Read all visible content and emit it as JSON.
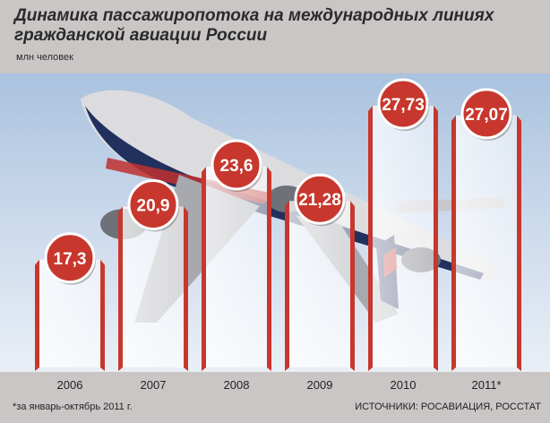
{
  "chart_data": {
    "type": "bar",
    "title": "Динамика пассажиропотока на международных линиях гражданской авиации России",
    "unit_label": "млн человек",
    "categories": [
      "2006",
      "2007",
      "2008",
      "2009",
      "2010",
      "2011*"
    ],
    "values": [
      17.3,
      20.9,
      23.6,
      21.28,
      27.73,
      27.07
    ],
    "value_labels": [
      "17,3",
      "20,9",
      "23,6",
      "21,28",
      "27,73",
      "27,07"
    ],
    "footnote": "*за январь-октябрь 2011 г.",
    "source": "ИСТОЧНИКИ: РОСАВИАЦИЯ, РОССТАТ",
    "colors": {
      "bar_edge": "#c8372d",
      "label_circle": "#c8372d",
      "label_text": "#ffffff",
      "background": "#c9c6c5"
    }
  }
}
